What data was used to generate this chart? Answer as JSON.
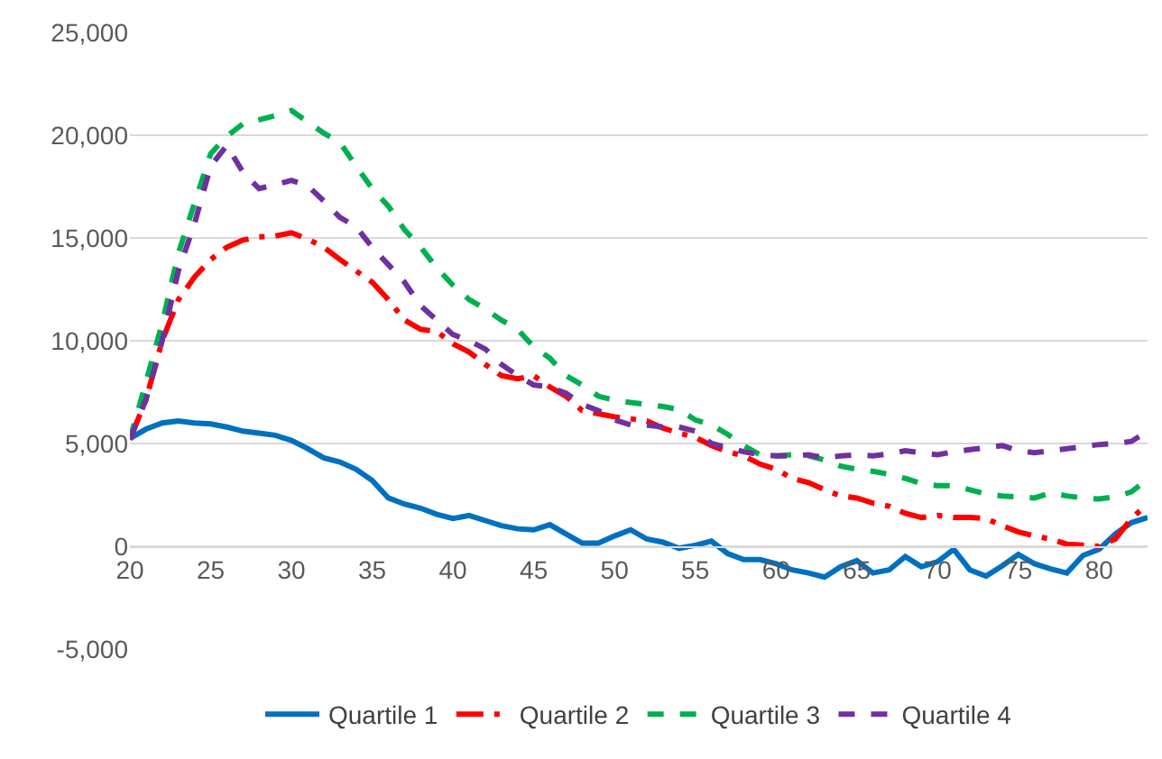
{
  "chart_data": {
    "type": "line",
    "x": [
      20,
      21,
      22,
      23,
      24,
      25,
      26,
      27,
      28,
      29,
      30,
      31,
      32,
      33,
      34,
      35,
      36,
      37,
      38,
      39,
      40,
      41,
      42,
      43,
      44,
      45,
      46,
      47,
      48,
      49,
      50,
      51,
      52,
      53,
      54,
      55,
      56,
      57,
      58,
      59,
      60,
      61,
      62,
      63,
      64,
      65,
      66,
      67,
      68,
      69,
      70,
      71,
      72,
      73,
      74,
      75,
      76,
      77,
      78,
      79,
      80,
      81,
      82,
      83
    ],
    "series": [
      {
        "name": "Quartile 1",
        "color": "#0070c0",
        "line_style": "solid",
        "values": [
          5250,
          5700,
          6000,
          6100,
          6000,
          5950,
          5800,
          5600,
          5500,
          5400,
          5150,
          4750,
          4300,
          4100,
          3750,
          3200,
          2350,
          2050,
          1850,
          1550,
          1350,
          1500,
          1250,
          1000,
          850,
          800,
          1050,
          600,
          150,
          150,
          500,
          800,
          350,
          200,
          -100,
          50,
          250,
          -350,
          -650,
          -650,
          -850,
          -1150,
          -1300,
          -1500,
          -1000,
          -700,
          -1300,
          -1150,
          -500,
          -1000,
          -750,
          -150,
          -1150,
          -1450,
          -950,
          -400,
          -850,
          -1100,
          -1300,
          -450,
          -150,
          600,
          1150,
          1400
        ]
      },
      {
        "name": "Quartile 2",
        "color": "#ff0000",
        "line_style": "dashdot",
        "values": [
          5200,
          7150,
          10000,
          12000,
          13100,
          13950,
          14550,
          14900,
          15050,
          15100,
          15250,
          14950,
          14550,
          13950,
          13400,
          12850,
          12000,
          11000,
          10550,
          10450,
          9850,
          9450,
          8850,
          8300,
          8150,
          8300,
          7750,
          7300,
          6600,
          6450,
          6300,
          6200,
          6100,
          5750,
          5500,
          5300,
          4900,
          4600,
          4400,
          4000,
          3750,
          3300,
          3100,
          2750,
          2450,
          2350,
          2100,
          1950,
          1600,
          1400,
          1500,
          1400,
          1400,
          1350,
          1000,
          700,
          500,
          350,
          100,
          50,
          0,
          350,
          1350,
          2050
        ]
      },
      {
        "name": "Quartile 3",
        "color": "#00b050",
        "line_style": "dashed",
        "values": [
          5200,
          8000,
          10850,
          14250,
          16700,
          19100,
          19950,
          20550,
          20750,
          20950,
          21200,
          20650,
          20100,
          19650,
          18500,
          17400,
          16550,
          15400,
          14550,
          13550,
          12700,
          12000,
          11550,
          11000,
          10550,
          9700,
          9150,
          8300,
          7850,
          7300,
          7100,
          7000,
          6900,
          6800,
          6650,
          6150,
          5900,
          5450,
          4900,
          4450,
          4400,
          4450,
          4400,
          4200,
          3900,
          3750,
          3650,
          3500,
          3300,
          3050,
          2950,
          2950,
          2750,
          2550,
          2450,
          2400,
          2350,
          2600,
          2450,
          2350,
          2300,
          2400,
          2650,
          3250
        ]
      },
      {
        "name": "Quartile 4",
        "color": "#7030a0",
        "line_style": "dashed",
        "values": [
          5200,
          7150,
          10000,
          13400,
          15700,
          18500,
          19500,
          18200,
          17400,
          17600,
          17800,
          17550,
          16800,
          16000,
          15550,
          14550,
          13700,
          12850,
          11700,
          11000,
          10300,
          10000,
          9600,
          8850,
          8300,
          7850,
          7750,
          7450,
          6900,
          6600,
          6150,
          5900,
          5900,
          5800,
          5800,
          5600,
          5000,
          4800,
          4600,
          4450,
          4400,
          4400,
          4450,
          4300,
          4400,
          4450,
          4400,
          4500,
          4650,
          4550,
          4450,
          4600,
          4700,
          4800,
          4900,
          4650,
          4550,
          4650,
          4750,
          4850,
          4950,
          5000,
          5100,
          5600
        ]
      }
    ],
    "xlim": [
      20,
      83
    ],
    "xticks": [
      20,
      25,
      30,
      35,
      40,
      45,
      50,
      55,
      60,
      65,
      70,
      75,
      80
    ],
    "ylim": [
      -5000,
      25000
    ],
    "yticks": [
      {
        "value": -5000,
        "label": "-5,000"
      },
      0,
      {
        "value": 5000,
        "label": "5,000"
      },
      {
        "value": 10000,
        "label": "10,000"
      },
      {
        "value": 15000,
        "label": "15,000"
      },
      {
        "value": 20000,
        "label": "20,000"
      },
      {
        "value": 25000,
        "label": "25,000"
      }
    ],
    "grid": "y",
    "legend": "bottom",
    "marker": "none"
  }
}
